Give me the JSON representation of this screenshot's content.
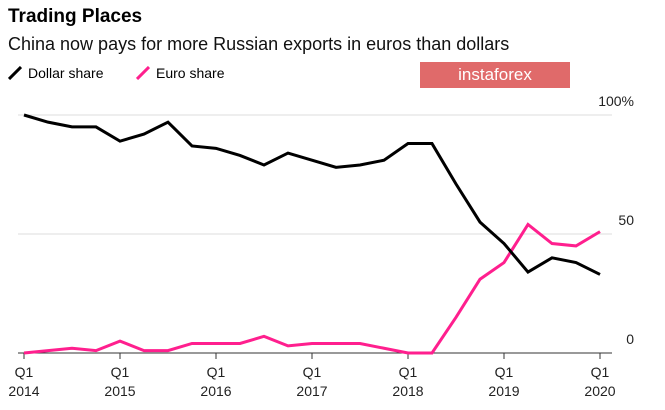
{
  "chart_data": {
    "type": "line",
    "title": "Trading Places",
    "subtitle": "China now pays for more Russian exports in euros than dollars",
    "ylim": [
      0,
      100
    ],
    "yticks": [
      {
        "v": 100,
        "label": "100%"
      },
      {
        "v": 50,
        "label": "50"
      },
      {
        "v": 0,
        "label": "0"
      }
    ],
    "xticks": [
      {
        "i": 0,
        "q": "Q1",
        "y": "2014"
      },
      {
        "i": 4,
        "q": "Q1",
        "y": "2015"
      },
      {
        "i": 8,
        "q": "Q1",
        "y": "2016"
      },
      {
        "i": 12,
        "q": "Q1",
        "y": "2017"
      },
      {
        "i": 16,
        "q": "Q1",
        "y": "2018"
      },
      {
        "i": 20,
        "q": "Q1",
        "y": "2019"
      },
      {
        "i": 24,
        "q": "Q1",
        "y": "2020"
      }
    ],
    "legend_placement": "top-left",
    "series": [
      {
        "name": "Dollar share",
        "color": "#000000",
        "values": [
          100,
          97,
          95,
          95,
          89,
          92,
          97,
          87,
          86,
          83,
          79,
          84,
          81,
          78,
          79,
          81,
          88,
          88,
          71,
          55,
          46,
          34,
          40,
          38,
          33
        ]
      },
      {
        "name": "Euro share",
        "color": "#ff1f8e",
        "values": [
          0,
          1,
          2,
          1,
          5,
          1,
          1,
          4,
          4,
          4,
          7,
          3,
          4,
          4,
          4,
          2,
          0,
          0,
          15,
          31,
          38,
          54,
          46,
          45,
          51
        ]
      }
    ]
  },
  "watermark": "instaforex"
}
